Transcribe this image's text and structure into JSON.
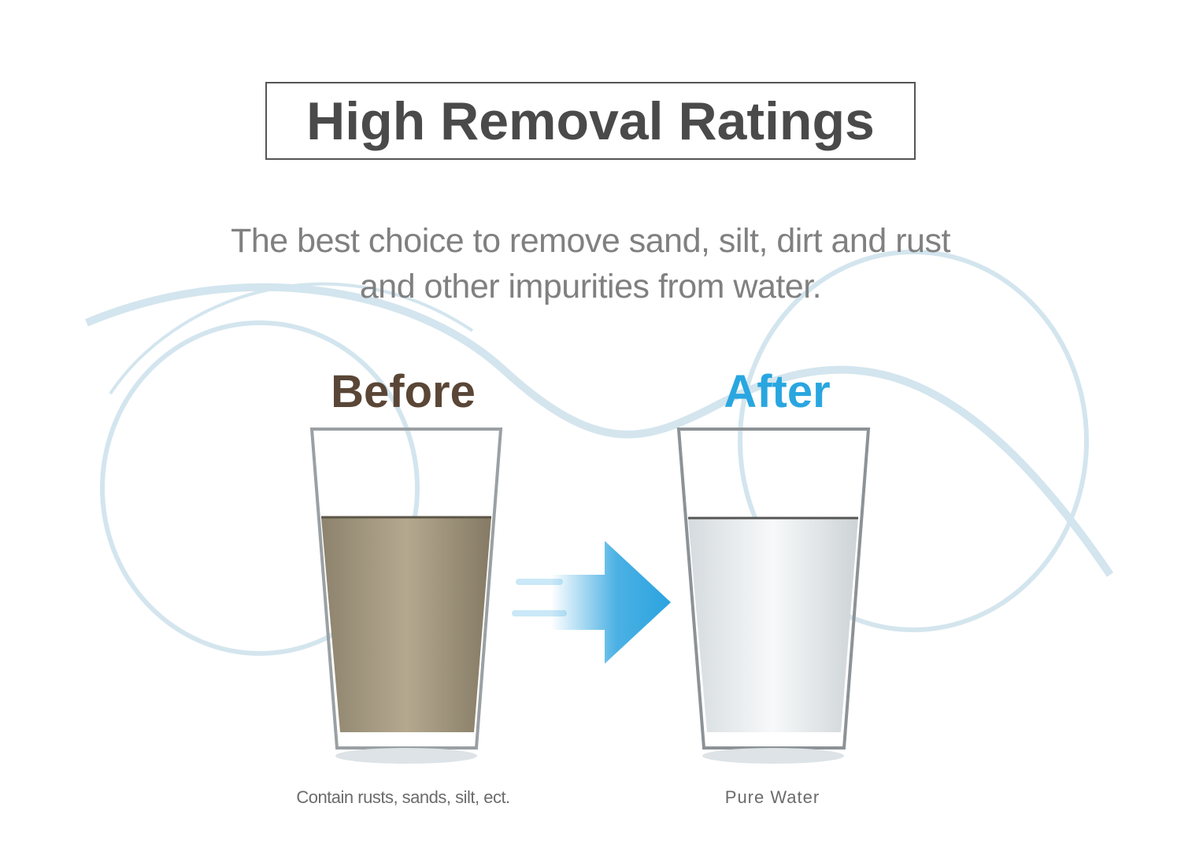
{
  "title": "High Removal Ratings",
  "subtitle": {
    "line1": "The best choice to remove sand, silt, dirt and rust",
    "line2": "and other impurities from water."
  },
  "before": {
    "label": "Before",
    "caption": "Contain rusts, sands, silt, ect.",
    "label_color": "#5a4636",
    "water_color": "#a89c84"
  },
  "after": {
    "label": "After",
    "caption": "Pure Water",
    "label_color": "#29a6e0",
    "water_color": "#e8ecee"
  },
  "arrow": {
    "icon": "arrow-right-icon",
    "color": "#2ba3df"
  }
}
